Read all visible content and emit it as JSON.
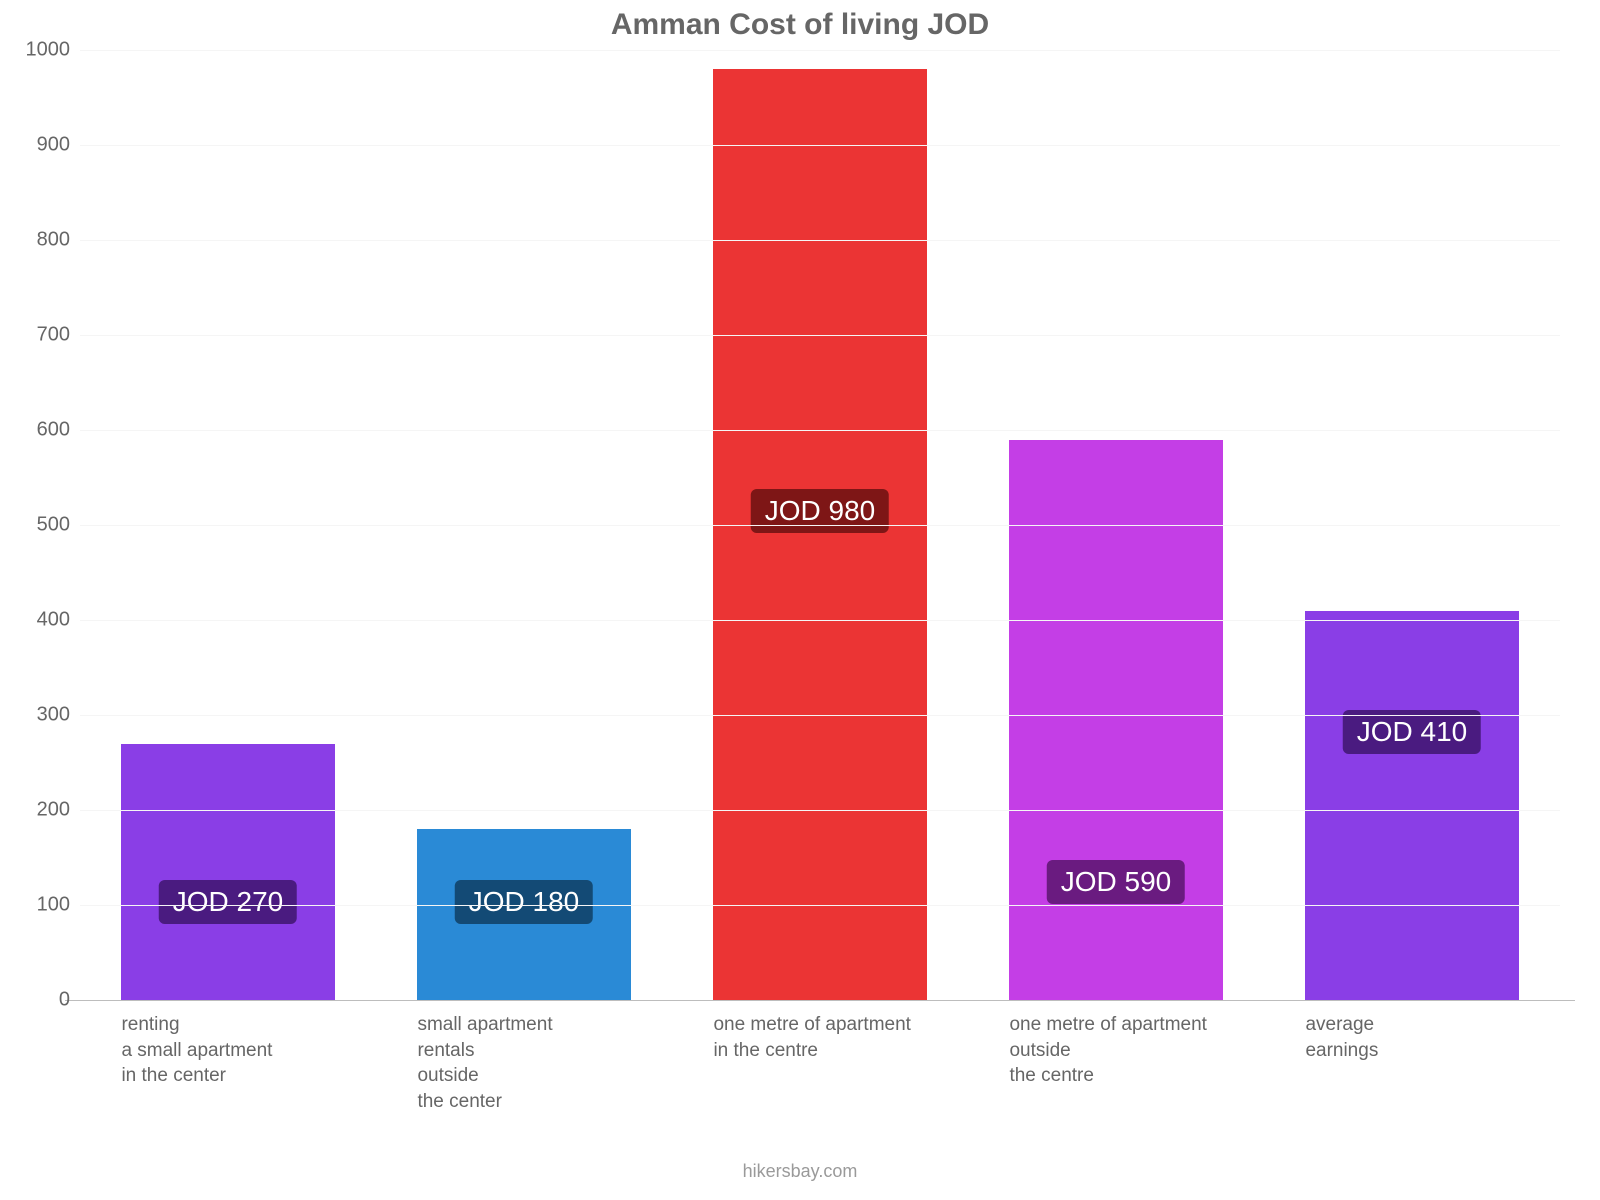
{
  "chart": {
    "type": "bar",
    "title": "Amman Cost of living JOD",
    "title_fontsize": 30,
    "title_color": "#666666",
    "background_color": "#ffffff",
    "footer": "hikersbay.com",
    "footer_color": "#9a9a9a",
    "y": {
      "min": 0,
      "max": 1000,
      "tick_step": 100,
      "ticks": [
        0,
        100,
        200,
        300,
        400,
        500,
        600,
        700,
        800,
        900,
        1000
      ],
      "tick_color": "#666666",
      "tick_fontsize": 20,
      "baseline_color": "#bdbdbd",
      "gridline_color": "#f5f5f5"
    },
    "x": {
      "tick_color": "#666666",
      "tick_fontsize": 19,
      "categories": [
        "renting\na small apartment\nin the center",
        "small apartment\nrentals\noutside\nthe center",
        "one metre of apartment\nin the centre",
        "one metre of apartment\noutside\nthe centre",
        "average\nearnings"
      ]
    },
    "bars": {
      "gap_ratio": 0.28,
      "series": [
        {
          "value": 270,
          "label": "JOD 270",
          "color": "#8a3ee6",
          "label_bg": "#4a1b80"
        },
        {
          "value": 180,
          "label": "JOD 180",
          "color": "#2a8ad6",
          "label_bg": "#134a75"
        },
        {
          "value": 980,
          "label": "JOD 980",
          "color": "#eb3434",
          "label_bg": "#7e1616"
        },
        {
          "value": 590,
          "label": "JOD 590",
          "color": "#c43ee6",
          "label_bg": "#6a1b80"
        },
        {
          "value": 410,
          "label": "JOD 410",
          "color": "#8a3ee6",
          "label_bg": "#4a1b80"
        }
      ]
    }
  }
}
